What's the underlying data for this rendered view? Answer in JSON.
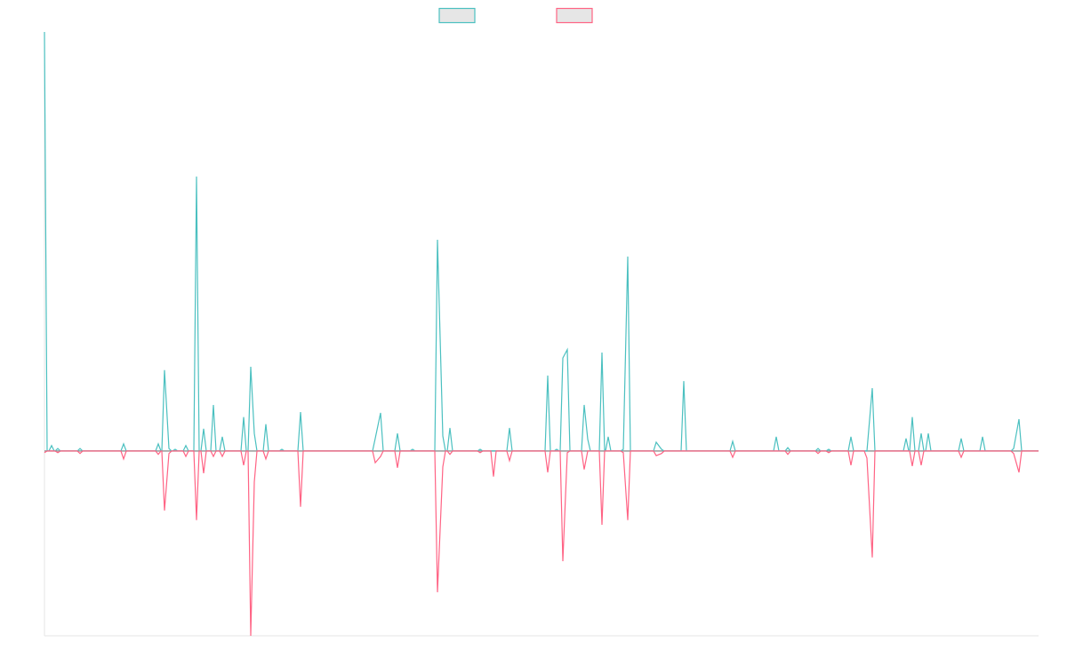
{
  "chart_data": {
    "type": "line",
    "legend": "top",
    "xlim": [
      0,
      1118
    ],
    "ylim": [
      -44.1,
      100
    ],
    "x": [
      0,
      3,
      5,
      8,
      11,
      12,
      15,
      18,
      37,
      40,
      43,
      86,
      89,
      92,
      125,
      128,
      131,
      132,
      135,
      140,
      143,
      144,
      147,
      150,
      156,
      159,
      162,
      168,
      171,
      174,
      176,
      179,
      182,
      187,
      190,
      193,
      197,
      200,
      203,
      221,
      224,
      227,
      229,
      232,
      236,
      239,
      246,
      249,
      252,
      264,
      267,
      270,
      285,
      288,
      291,
      369,
      372,
      378,
      381,
      394,
      397,
      400,
      411,
      414,
      417,
      439,
      442,
      448,
      451,
      453,
      456,
      459,
      487,
      490,
      493,
      502,
      505,
      508,
      520,
      523,
      526,
      563,
      566,
      569,
      573,
      576,
      579,
      580,
      583,
      588,
      591,
      604,
      607,
      611,
      614,
      624,
      627,
      630,
      631,
      634,
      637,
      648,
      651,
      656,
      659,
      685,
      688,
      694,
      697,
      716,
      719,
      722,
      771,
      774,
      777,
      820,
      823,
      826,
      833,
      836,
      839,
      867,
      870,
      873,
      879,
      882,
      885,
      904,
      907,
      910,
      922,
      925,
      931,
      934,
      966,
      969,
      972,
      973,
      976,
      979,
      983,
      986,
      989,
      991,
      994,
      997,
      1028,
      1031,
      1034,
      1052,
      1055,
      1058,
      1087,
      1090,
      1096,
      1099,
      1118
    ],
    "series": [
      {
        "color": "#4bc0c0",
        "values": [
          100,
          0,
          0,
          1.3,
          0,
          0,
          0.6,
          0,
          0,
          0.6,
          0,
          0,
          1.7,
          0,
          0,
          1.7,
          0,
          0,
          19.3,
          0.6,
          0,
          0,
          0.4,
          0,
          0,
          1.3,
          0,
          0,
          65.5,
          0,
          0,
          5.3,
          0,
          0,
          11.0,
          0,
          0,
          3.4,
          0,
          0,
          8.1,
          0,
          0,
          20.1,
          4.2,
          0,
          0,
          6.4,
          0,
          0,
          0.4,
          0,
          0,
          9.3,
          0,
          0,
          3.0,
          9.1,
          0,
          0,
          4.2,
          0,
          0,
          0.4,
          0,
          0,
          50.4,
          3.6,
          0,
          0,
          5.5,
          0,
          0,
          0.4,
          0,
          0,
          0,
          0,
          0,
          5.5,
          0,
          0,
          18.0,
          0,
          0,
          0.4,
          0,
          0,
          22.2,
          24.2,
          0,
          0,
          11.0,
          2.8,
          0,
          0,
          23.5,
          0,
          0,
          3.4,
          0,
          0,
          0.4,
          46.4,
          0,
          0,
          2.1,
          0.4,
          0,
          0,
          16.7,
          0,
          0,
          2.3,
          0,
          0,
          3.4,
          0,
          0,
          0.8,
          0,
          0,
          0.6,
          0,
          0,
          0.4,
          0,
          0,
          3.4,
          0,
          0,
          0,
          15.0,
          0,
          0,
          3.0,
          0,
          0,
          8.1,
          0,
          0,
          4.2,
          0,
          0,
          4.2,
          0,
          0,
          3.0,
          0,
          0,
          3.4,
          0,
          0,
          0.6,
          7.6,
          0,
          0
        ]
      },
      {
        "color": "#ff6384",
        "values": [
          -0.4,
          0,
          0,
          0,
          0,
          0,
          -0.4,
          0,
          0,
          -0.6,
          0,
          0,
          -1.9,
          0,
          0,
          -0.8,
          0,
          0,
          -14.2,
          -0.6,
          0,
          0,
          0,
          0,
          0,
          -1.3,
          0,
          0,
          -16.5,
          0,
          0,
          -5.3,
          0,
          0,
          -1.3,
          0,
          0,
          -1.3,
          0,
          0,
          -3.4,
          0,
          0,
          -44.1,
          -7.4,
          0,
          0,
          -1.9,
          0,
          0,
          0,
          0,
          0,
          -13.3,
          0,
          0,
          -2.8,
          -1.3,
          0,
          0,
          -4.0,
          0,
          0,
          0,
          0,
          0,
          -33.7,
          -3.8,
          0,
          0,
          -0.8,
          0,
          0,
          -0.4,
          0,
          0,
          -6.1,
          0,
          0,
          -2.3,
          0,
          0,
          -5.1,
          0,
          0,
          0,
          0,
          0,
          -26.3,
          -0.4,
          0,
          0,
          -4.4,
          0,
          0,
          0,
          -17.6,
          0,
          0,
          0,
          0,
          0,
          -0.4,
          -16.5,
          0,
          0,
          -1.1,
          -0.6,
          0,
          0,
          0,
          0,
          0,
          -1.5,
          0,
          0,
          0,
          0,
          0,
          -0.8,
          0,
          0,
          -0.6,
          0,
          0,
          -0.4,
          0,
          0,
          -3.4,
          0,
          0,
          -1.7,
          -25.4,
          0,
          0,
          0,
          0,
          0,
          -3.6,
          0,
          0,
          -3.4,
          0,
          0,
          0,
          0,
          0,
          -1.5,
          0,
          0,
          0,
          0,
          0,
          -0.6,
          -5.1,
          0,
          0
        ]
      }
    ]
  }
}
